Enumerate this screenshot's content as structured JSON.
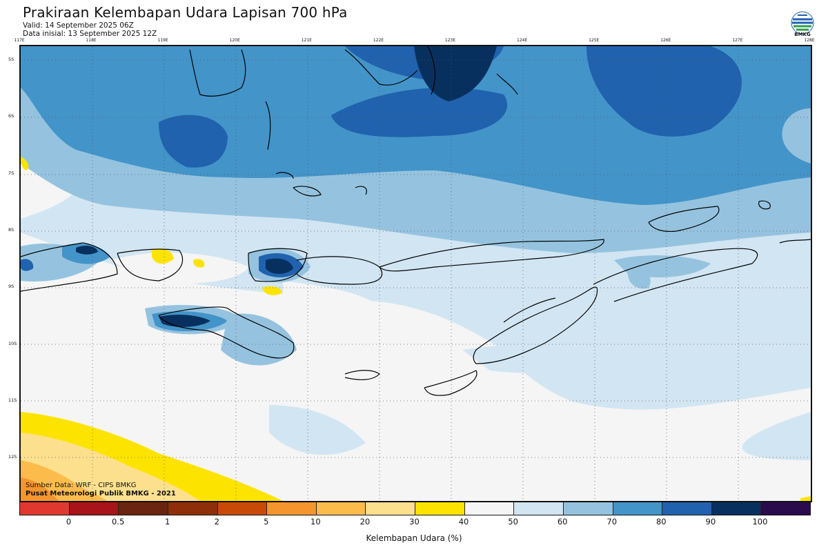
{
  "header": {
    "title": "Prakiraan Kelembapan Udara Lapisan 700 hPa",
    "valid": "Valid: 14 September 2025 06Z",
    "init": "Data inisial: 13 September 2025 12Z"
  },
  "logo": {
    "text": "BMKG",
    "icon": "bmkg-logo-icon"
  },
  "map": {
    "lon_labels": [
      "117E",
      "118E",
      "119E",
      "120E",
      "121E",
      "122E",
      "123E",
      "124E",
      "125E",
      "126E",
      "127E",
      "128E"
    ],
    "lat_labels": [
      "5S",
      "6S",
      "7S",
      "8S",
      "9S",
      "10S",
      "11S",
      "12S"
    ]
  },
  "credits": {
    "source": "Sumber Data: WRF - CIPS BMKG",
    "org": "Pusat Meteorologi Publik BMKG - 2021"
  },
  "colorbar": {
    "colors": [
      "#e0382f",
      "#a8141a",
      "#6b2410",
      "#8e2f0a",
      "#c84a06",
      "#f5952d",
      "#fbbc4c",
      "#fde08e",
      "#fde400",
      "#f5f5f5",
      "#d2e5f2",
      "#95c3df",
      "#4394c9",
      "#2062ad",
      "#08305e",
      "#2a0c4c"
    ],
    "labels": [
      "0",
      "0.5",
      "1",
      "2",
      "5",
      "10",
      "20",
      "30",
      "40",
      "50",
      "60",
      "70",
      "80",
      "90",
      "100"
    ],
    "title": "Kelembapan Udara (%)"
  }
}
